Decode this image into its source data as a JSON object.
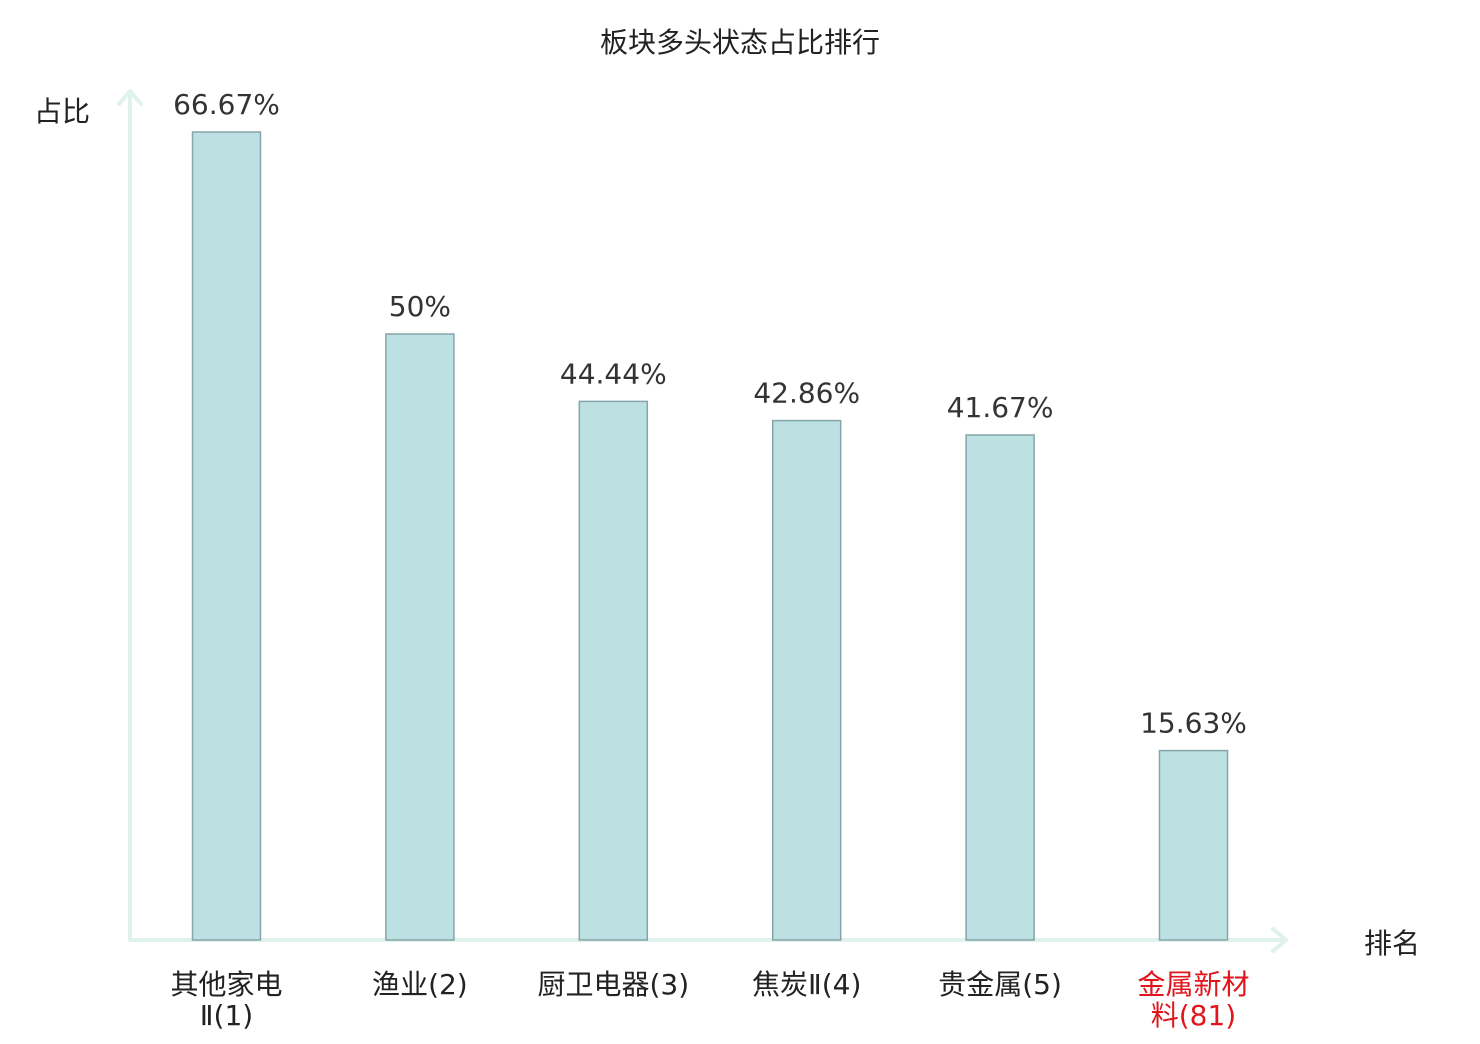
{
  "chart_data": {
    "type": "bar",
    "title": "板块多头状态占比排行",
    "ylabel": "占比",
    "xlabel": "排名",
    "grid": false,
    "legend": "none",
    "ylim": [
      0,
      70
    ],
    "categories": [
      {
        "lines": [
          "其他家电",
          "Ⅱ(1)"
        ],
        "highlight": false
      },
      {
        "lines": [
          "渔业(2)"
        ],
        "highlight": false
      },
      {
        "lines": [
          "厨卫电器(3)"
        ],
        "highlight": false
      },
      {
        "lines": [
          "焦炭Ⅱ(4)"
        ],
        "highlight": false
      },
      {
        "lines": [
          "贵金属(5)"
        ],
        "highlight": false
      },
      {
        "lines": [
          "金属新材",
          "料(81)"
        ],
        "highlight": true
      }
    ],
    "values": [
      66.67,
      50,
      44.44,
      42.86,
      41.67,
      15.63
    ],
    "value_labels": [
      "66.67%",
      "50%",
      "44.44%",
      "42.86%",
      "41.67%",
      "15.63%"
    ]
  },
  "colors": {
    "bar_fill": "#bde0e3",
    "bar_stroke": "#85a5a8",
    "axis": "#dff2ee",
    "text": "#333333",
    "title": "#222222",
    "highlight": "#e0161c"
  }
}
